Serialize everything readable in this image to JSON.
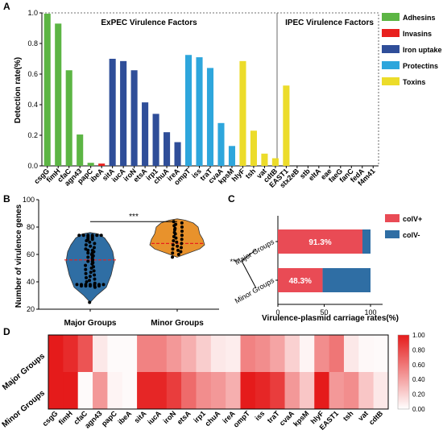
{
  "panels": {
    "a": "A",
    "b": "B",
    "c": "C",
    "d": "D"
  },
  "chart_data": [
    {
      "type": "bar",
      "panel": "A",
      "ylabel": "Detection rate(%)",
      "ylim": [
        0,
        1.0
      ],
      "yticks": [
        "0.0",
        "0.2",
        "0.4",
        "0.6",
        "0.8",
        "1.0"
      ],
      "regions": [
        "ExPEC Virulence Factors",
        "IPEC Virulence Factors"
      ],
      "legend": [
        {
          "name": "Adhesins",
          "color": "#5cb544"
        },
        {
          "name": "Invasins",
          "color": "#e8201e"
        },
        {
          "name": "Iron uptake",
          "color": "#2f4e99"
        },
        {
          "name": "Protectins",
          "color": "#2ea6dc"
        },
        {
          "name": "Toxins",
          "color": "#ecdc2a"
        }
      ],
      "categories": [
        "csgG",
        "fimH",
        "cfaC",
        "agn43",
        "papC",
        "ibeA",
        "sitA",
        "iucA",
        "iroN",
        "etsA",
        "irp1",
        "chuA",
        "ireA",
        "ompT",
        "iss",
        "traT",
        "cvaA",
        "kpsM",
        "hlyF",
        "tsh",
        "vat",
        "cdtB",
        "EAST1",
        "stx2eB",
        "stb",
        "eltA",
        "eae",
        "faeG",
        "fanC",
        "fedA",
        "f4m41"
      ],
      "values": [
        0.995,
        0.93,
        0.625,
        0.205,
        0.02,
        0.015,
        0.7,
        0.685,
        0.625,
        0.415,
        0.34,
        0.22,
        0.155,
        0.725,
        0.71,
        0.64,
        0.28,
        0.13,
        0.685,
        0.23,
        0.08,
        0.05,
        0.525,
        0,
        0,
        0,
        0,
        0,
        0,
        0,
        0
      ],
      "groups": [
        "Adhesins",
        "Adhesins",
        "Adhesins",
        "Adhesins",
        "Adhesins",
        "Invasins",
        "Iron uptake",
        "Iron uptake",
        "Iron uptake",
        "Iron uptake",
        "Iron uptake",
        "Iron uptake",
        "Iron uptake",
        "Protectins",
        "Protectins",
        "Protectins",
        "Protectins",
        "Protectins",
        "Toxins",
        "Toxins",
        "Toxins",
        "Toxins",
        "Toxins",
        "Toxins",
        "Toxins",
        "Toxins",
        "Toxins",
        "Toxins",
        "Toxins",
        "Toxins",
        "Toxins"
      ]
    },
    {
      "type": "scatter",
      "panel": "B",
      "ylabel": "Number of virulence genes",
      "ylim": [
        20,
        100
      ],
      "yticks": [
        "20",
        "40",
        "60",
        "80",
        "100"
      ],
      "categories": [
        "Major Groups",
        "Minor Groups"
      ],
      "colors": [
        "#2f6ea4",
        "#e8922c"
      ],
      "medians": [
        56,
        68
      ],
      "significance": "***",
      "series": [
        {
          "name": "Major Groups",
          "values": [
            74,
            74,
            74,
            74,
            74,
            74,
            73,
            73,
            72,
            72,
            71,
            71,
            70,
            69,
            68,
            67,
            66,
            65,
            64,
            63,
            63,
            62,
            61,
            61,
            60,
            59,
            58,
            58,
            57,
            56,
            55,
            55,
            54,
            53,
            52,
            51,
            50,
            49,
            48,
            47,
            46,
            45,
            44,
            43,
            42,
            41,
            40,
            39,
            38,
            38,
            38,
            38,
            38,
            38,
            38,
            37,
            37,
            37,
            37,
            37,
            36,
            25
          ]
        },
        {
          "name": "Minor Groups",
          "values": [
            84,
            83,
            82,
            81,
            80,
            79,
            78,
            77,
            76,
            75,
            74,
            73,
            72,
            71,
            70,
            69,
            68,
            67,
            66,
            65,
            64,
            63,
            62,
            61,
            60,
            58
          ]
        }
      ]
    },
    {
      "type": "bar",
      "orientation": "horizontal",
      "stacked": true,
      "panel": "C",
      "xlabel": "Virulence-plasmid carriage rates(%)",
      "xlim": [
        0,
        100
      ],
      "xticks": [
        "0",
        "50",
        "100"
      ],
      "categories": [
        "Major Groups",
        "Minor Groups"
      ],
      "significance": "***",
      "series": [
        {
          "name": "colV+",
          "color": "#e94b55",
          "values": [
            91.3,
            48.3
          ],
          "labels": [
            "91.3%",
            "48.3%"
          ]
        },
        {
          "name": "colV-",
          "color": "#2f6ea4",
          "values": [
            8.7,
            51.7
          ]
        }
      ]
    },
    {
      "type": "heatmap",
      "panel": "D",
      "rows": [
        "Major Groups",
        "Minor Groups"
      ],
      "columns": [
        "csgG",
        "fimH",
        "cfaC",
        "agn43",
        "papC",
        "ibeA",
        "sitA",
        "iucA",
        "iroN",
        "etsA",
        "irp1",
        "chuA",
        "ireA",
        "ompT",
        "iss",
        "traT",
        "cvaA",
        "kpsM",
        "hlyF",
        "EAST1",
        "tsh",
        "vat",
        "cdtB"
      ],
      "values": [
        [
          1.0,
          0.93,
          0.75,
          0.1,
          0.02,
          0.02,
          0.55,
          0.55,
          0.45,
          0.35,
          0.22,
          0.1,
          0.08,
          0.55,
          0.5,
          0.4,
          0.2,
          0.05,
          0.5,
          0.6,
          0.1,
          0.03,
          0.02
        ],
        [
          1.0,
          1.0,
          0.02,
          0.45,
          0.05,
          0.02,
          0.95,
          0.95,
          0.85,
          0.65,
          0.5,
          0.45,
          0.35,
          1.0,
          0.95,
          0.85,
          0.45,
          0.25,
          1.0,
          0.45,
          0.5,
          0.25,
          0.1
        ]
      ],
      "colorbar": {
        "ticks": [
          "0.00",
          "0.20",
          "0.40",
          "0.60",
          "0.80",
          "1.00"
        ],
        "min_color": "#ffffff",
        "max_color": "#e51b1b"
      }
    }
  ]
}
